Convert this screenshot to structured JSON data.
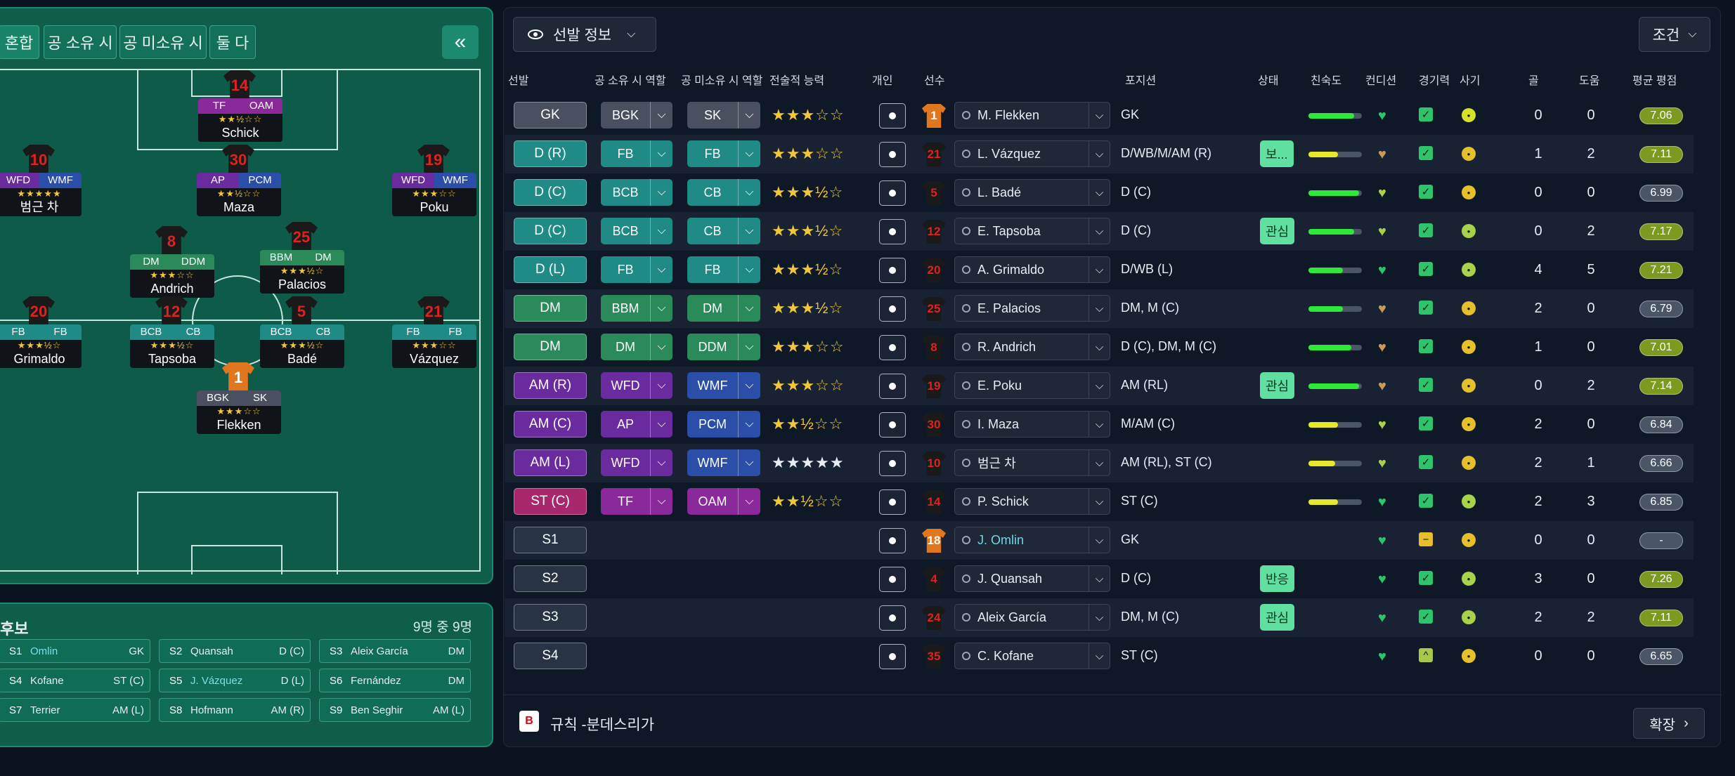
{
  "formation_tabs": [
    "혼합",
    "공 소유 시",
    "공 미소유 시",
    "둘 다"
  ],
  "collapse_icon": "«",
  "pitch_players": [
    {
      "num": "14",
      "r1": "TF",
      "r2": "OAM",
      "c1": "#8a2a9a",
      "c2": "#8a2a9a",
      "stars": "★★½☆☆",
      "name": "Schick",
      "gk": false
    },
    {
      "num": "10",
      "r1": "WFD",
      "r2": "WMF",
      "c1": "#6a2b9e",
      "c2": "#2b4fa8",
      "stars": "★★★★★",
      "name": "범근 차",
      "gk": false
    },
    {
      "num": "30",
      "r1": "AP",
      "r2": "PCM",
      "c1": "#6a2b9e",
      "c2": "#2b4fa8",
      "stars": "★★½☆☆",
      "name": "Maza",
      "gk": false
    },
    {
      "num": "19",
      "r1": "WFD",
      "r2": "WMF",
      "c1": "#6a2b9e",
      "c2": "#2b4fa8",
      "stars": "★★★☆☆",
      "name": "Poku",
      "gk": false
    },
    {
      "num": "8",
      "r1": "DM",
      "r2": "DDM",
      "c1": "#2a8a5a",
      "c2": "#2a8a5a",
      "stars": "★★★☆☆",
      "name": "Andrich",
      "gk": false
    },
    {
      "num": "25",
      "r1": "BBM",
      "r2": "DM",
      "c1": "#2a8a5a",
      "c2": "#2a8a5a",
      "stars": "★★★½☆",
      "name": "Palacios",
      "gk": false
    },
    {
      "num": "20",
      "r1": "FB",
      "r2": "FB",
      "c1": "#1f8a86",
      "c2": "#1f8a86",
      "stars": "★★★½☆",
      "name": "Grimaldo",
      "gk": false
    },
    {
      "num": "12",
      "r1": "BCB",
      "r2": "CB",
      "c1": "#1f8a86",
      "c2": "#1f8a86",
      "stars": "★★★½☆",
      "name": "Tapsoba",
      "gk": false
    },
    {
      "num": "5",
      "r1": "BCB",
      "r2": "CB",
      "c1": "#1f8a86",
      "c2": "#1f8a86",
      "stars": "★★★½☆",
      "name": "Badé",
      "gk": false
    },
    {
      "num": "21",
      "r1": "FB",
      "r2": "FB",
      "c1": "#1f8a86",
      "c2": "#1f8a86",
      "stars": "★★★☆☆",
      "name": "Vázquez",
      "gk": false
    },
    {
      "num": "1",
      "r1": "BGK",
      "r2": "SK",
      "c1": "#4a5060",
      "c2": "#4a5060",
      "stars": "★★★☆☆",
      "name": "Flekken",
      "gk": true
    }
  ],
  "subs": {
    "title": "후보",
    "count": "9명 중 9명",
    "items": [
      {
        "id": "S1",
        "name": "Omlin",
        "pos": "GK",
        "hl": true
      },
      {
        "id": "S2",
        "name": "Quansah",
        "pos": "D (C)",
        "hl": false
      },
      {
        "id": "S3",
        "name": "Aleix García",
        "pos": "DM",
        "hl": false
      },
      {
        "id": "S4",
        "name": "Kofane",
        "pos": "ST (C)",
        "hl": false
      },
      {
        "id": "S5",
        "name": "J. Vázquez",
        "pos": "D (L)",
        "hl": true
      },
      {
        "id": "S6",
        "name": "Fernández",
        "pos": "DM",
        "hl": false
      },
      {
        "id": "S7",
        "name": "Terrier",
        "pos": "AM (L)",
        "hl": false
      },
      {
        "id": "S8",
        "name": "Hofmann",
        "pos": "AM (R)",
        "hl": false
      },
      {
        "id": "S9",
        "name": "Ben Seghir",
        "pos": "AM (L)",
        "hl": false
      }
    ]
  },
  "toolbar": {
    "lineup_label": "선발 정보",
    "conditions_label": "조건"
  },
  "headers": {
    "start": "선발",
    "in_poss": "공 소유 시 역할",
    "out_poss": "공 미소유 시 역할",
    "tactical": "전술적 능력",
    "individual": "개인",
    "player": "선수",
    "position": "포지션",
    "status": "상태",
    "fam": "친숙도",
    "cond": "컨디션",
    "sharp": "경기력",
    "morale": "사기",
    "goals": "골",
    "assists": "도움",
    "rating": "평균 평점"
  },
  "rows": [
    {
      "slot": "GK",
      "sc": "#4a5060",
      "r1": "BGK",
      "c1": "#4a5060",
      "r2": "SK",
      "c2": "#4a5060",
      "stars": "★★★☆☆",
      "num": "1",
      "gk": true,
      "name": "M. Flekken",
      "blue": false,
      "pos": "GK",
      "status": "",
      "fit": 0.85,
      "fc": "#2ee83a",
      "hc": "#2ec46c",
      "sharp": "✓",
      "ss": "#2ec46c",
      "mc": "#d6e22a",
      "goals": "0",
      "assists": "0",
      "rating": "7.06",
      "rc": "#7a9a20"
    },
    {
      "slot": "D (R)",
      "sc": "#1f8a86",
      "r1": "FB",
      "c1": "#1f8a86",
      "r2": "FB",
      "c2": "#1f8a86",
      "stars": "★★★☆☆",
      "num": "21",
      "gk": false,
      "name": "L. Vázquez",
      "blue": false,
      "pos": "D/WB/M/AM (R)",
      "status": "보...",
      "fit": 0.55,
      "fc": "#e6e82a",
      "hc": "#c99a5a",
      "sharp": "✓",
      "ss": "#2ec46c",
      "mc": "#e6c02a",
      "goals": "1",
      "assists": "2",
      "rating": "7.11",
      "rc": "#7a9a20"
    },
    {
      "slot": "D (C)",
      "sc": "#1f8a86",
      "r1": "BCB",
      "c1": "#1f8a86",
      "r2": "CB",
      "c2": "#1f8a86",
      "stars": "★★★½☆",
      "num": "5",
      "gk": false,
      "name": "L. Badé",
      "blue": false,
      "pos": "D (C)",
      "status": "",
      "fit": 0.95,
      "fc": "#2ee83a",
      "hc": "#a8d24a",
      "sharp": "✓",
      "ss": "#2ec46c",
      "mc": "#e6c02a",
      "goals": "0",
      "assists": "0",
      "rating": "6.99",
      "rc": "#4a5566"
    },
    {
      "slot": "D (C)",
      "sc": "#1f8a86",
      "r1": "BCB",
      "c1": "#1f8a86",
      "r2": "CB",
      "c2": "#1f8a86",
      "stars": "★★★½☆",
      "num": "12",
      "gk": false,
      "name": "E. Tapsoba",
      "blue": false,
      "pos": "D (C)",
      "status": "관심",
      "fit": 0.85,
      "fc": "#2ee83a",
      "hc": "#a8d24a",
      "sharp": "✓",
      "ss": "#2ec46c",
      "mc": "#a8d24a",
      "goals": "0",
      "assists": "2",
      "rating": "7.17",
      "rc": "#7a9a20"
    },
    {
      "slot": "D (L)",
      "sc": "#1f8a86",
      "r1": "FB",
      "c1": "#1f8a86",
      "r2": "FB",
      "c2": "#1f8a86",
      "stars": "★★★½☆",
      "num": "20",
      "gk": false,
      "name": "A. Grimaldo",
      "blue": false,
      "pos": "D/WB (L)",
      "status": "",
      "fit": 0.65,
      "fc": "#2ee83a",
      "hc": "#2ec46c",
      "sharp": "✓",
      "ss": "#2ec46c",
      "mc": "#a8d24a",
      "goals": "4",
      "assists": "5",
      "rating": "7.21",
      "rc": "#7a9a20"
    },
    {
      "slot": "DM",
      "sc": "#2a8a5a",
      "r1": "BBM",
      "c1": "#2a8a5a",
      "r2": "DM",
      "c2": "#2a8a5a",
      "stars": "★★★½☆",
      "num": "25",
      "gk": false,
      "name": "E. Palacios",
      "blue": false,
      "pos": "DM, M (C)",
      "status": "",
      "fit": 0.65,
      "fc": "#2ee83a",
      "hc": "#c99a5a",
      "sharp": "✓",
      "ss": "#2ec46c",
      "mc": "#e6c02a",
      "goals": "2",
      "assists": "0",
      "rating": "6.79",
      "rc": "#4a5566"
    },
    {
      "slot": "DM",
      "sc": "#2a8a5a",
      "r1": "DM",
      "c1": "#2a8a5a",
      "r2": "DDM",
      "c2": "#2a8a5a",
      "stars": "★★★☆☆",
      "num": "8",
      "gk": false,
      "name": "R. Andrich",
      "blue": false,
      "pos": "D (C), DM, M (C)",
      "status": "",
      "fit": 0.8,
      "fc": "#2ee83a",
      "hc": "#c99a5a",
      "sharp": "✓",
      "ss": "#2ec46c",
      "mc": "#e6c02a",
      "goals": "1",
      "assists": "0",
      "rating": "7.01",
      "rc": "#7a9a20"
    },
    {
      "slot": "AM (R)",
      "sc": "#6a2b9e",
      "r1": "WFD",
      "c1": "#6a2b9e",
      "r2": "WMF",
      "c2": "#2b4fa8",
      "stars": "★★★☆☆",
      "num": "19",
      "gk": false,
      "name": "E. Poku",
      "blue": false,
      "pos": "AM (RL)",
      "status": "관심",
      "fit": 0.95,
      "fc": "#2ee83a",
      "hc": "#c99a5a",
      "sharp": "✓",
      "ss": "#2ec46c",
      "mc": "#e6c02a",
      "goals": "0",
      "assists": "2",
      "rating": "7.14",
      "rc": "#7a9a20"
    },
    {
      "slot": "AM (C)",
      "sc": "#6a2b9e",
      "r1": "AP",
      "c1": "#6a2b9e",
      "r2": "PCM",
      "c2": "#2b4fa8",
      "stars": "★★½☆☆",
      "num": "30",
      "gk": false,
      "name": "I. Maza",
      "blue": false,
      "pos": "M/AM (C)",
      "status": "",
      "fit": 0.55,
      "fc": "#e6e82a",
      "hc": "#a8d24a",
      "sharp": "✓",
      "ss": "#2ec46c",
      "mc": "#e6c02a",
      "goals": "2",
      "assists": "0",
      "rating": "6.84",
      "rc": "#4a5566"
    },
    {
      "slot": "AM (L)",
      "sc": "#6a2b9e",
      "r1": "WFD",
      "c1": "#6a2b9e",
      "r2": "WMF",
      "c2": "#2b4fa8",
      "stars": "★★★★★",
      "num": "10",
      "gk": false,
      "name": "범근 차",
      "blue": false,
      "pos": "AM (RL), ST (C)",
      "status": "",
      "fit": 0.5,
      "fc": "#e6e82a",
      "hc": "#a8d24a",
      "sharp": "✓",
      "ss": "#2ec46c",
      "mc": "#e6c02a",
      "goals": "2",
      "assists": "1",
      "rating": "6.66",
      "rc": "#4a5566"
    },
    {
      "slot": "ST (C)",
      "sc": "#a8286e",
      "r1": "TF",
      "c1": "#8a2a9a",
      "r2": "OAM",
      "c2": "#8a2a9a",
      "stars": "★★½☆☆",
      "num": "14",
      "gk": false,
      "name": "P. Schick",
      "blue": false,
      "pos": "ST (C)",
      "status": "",
      "fit": 0.55,
      "fc": "#e6e82a",
      "hc": "#2ec46c",
      "sharp": "✓",
      "ss": "#2ec46c",
      "mc": "#a8d24a",
      "goals": "2",
      "assists": "3",
      "rating": "6.85",
      "rc": "#4a5566"
    },
    {
      "slot": "S1",
      "sc": "#283446",
      "r1": "",
      "r2": "",
      "stars": "",
      "num": "18",
      "gk": true,
      "name": "J. Omlin",
      "blue": true,
      "pos": "GK",
      "status": "",
      "fit": 0,
      "fc": "",
      "hc": "#2ec46c",
      "sharp": "−",
      "ss": "#e6c02a",
      "mc": "#e6c02a",
      "goals": "0",
      "assists": "0",
      "rating": "-",
      "rc": "#4a5566"
    },
    {
      "slot": "S2",
      "sc": "#283446",
      "r1": "",
      "r2": "",
      "stars": "",
      "num": "4",
      "gk": false,
      "name": "J. Quansah",
      "blue": false,
      "pos": "D (C)",
      "status": "반응",
      "fit": 0,
      "fc": "",
      "hc": "#2ec46c",
      "sharp": "✓",
      "ss": "#2ec46c",
      "mc": "#a8d24a",
      "goals": "3",
      "assists": "0",
      "rating": "7.26",
      "rc": "#7a9a20"
    },
    {
      "slot": "S3",
      "sc": "#283446",
      "r1": "",
      "r2": "",
      "stars": "",
      "num": "24",
      "gk": false,
      "name": "Aleix García",
      "blue": false,
      "pos": "DM, M (C)",
      "status": "관심",
      "fit": 0,
      "fc": "",
      "hc": "#2ec46c",
      "sharp": "✓",
      "ss": "#2ec46c",
      "mc": "#a8d24a",
      "goals": "2",
      "assists": "2",
      "rating": "7.11",
      "rc": "#7a9a20"
    },
    {
      "slot": "S4",
      "sc": "#283446",
      "r1": "",
      "r2": "",
      "stars": "",
      "num": "35",
      "gk": false,
      "name": "C. Kofane",
      "blue": false,
      "pos": "ST (C)",
      "status": "",
      "fit": 0,
      "fc": "",
      "hc": "#2ec46c",
      "sharp": "^",
      "ss": "#a8c84a",
      "mc": "#e6c02a",
      "goals": "0",
      "assists": "0",
      "rating": "6.65",
      "rc": "#4a5566"
    }
  ],
  "footer": {
    "league_icon": "B",
    "league_name": "규칙 -분데스리가",
    "expand_label": "확장"
  }
}
